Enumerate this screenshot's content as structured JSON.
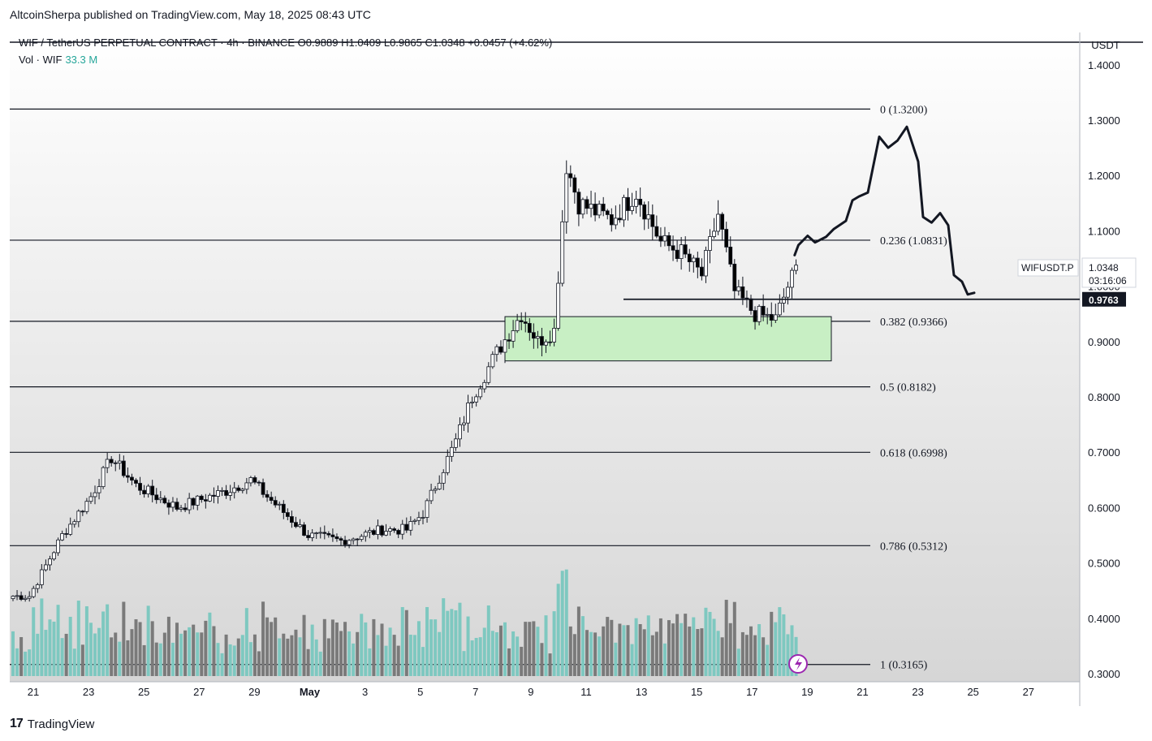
{
  "publisher_line": "AltcoinSherpa published on TradingView.com, May 18, 2025 08:43 UTC",
  "legend": {
    "symbol_line": "WIF / TetherUS PERPETUAL CONTRACT · 4h · BINANCE  O0.9889  H1.0409  L0.9865  C1.0348  +0.0457 (+4.62%)",
    "vol_label": "Vol · WIF",
    "vol_value": "33.3 M"
  },
  "price_axis": {
    "currency": "USDT",
    "ticks": [
      "1.4000",
      "1.3000",
      "1.2000",
      "1.1000",
      "1.0000",
      "0.9000",
      "0.8000",
      "0.7000",
      "0.6000",
      "0.5000",
      "0.4000",
      "0.3000"
    ]
  },
  "price_badge": {
    "symbol": "WIFUSDT.P",
    "price": "1.0348",
    "countdown": "03:16:06",
    "level": "0.9763"
  },
  "time_axis": {
    "labels": [
      "21",
      "23",
      "25",
      "27",
      "29",
      "May",
      "3",
      "5",
      "7",
      "9",
      "11",
      "13",
      "15",
      "17",
      "19",
      "21",
      "23",
      "25",
      "27"
    ]
  },
  "branding": {
    "logo_text": "TradingView",
    "logo_mark": "17"
  },
  "colors": {
    "up_candle": "#ffffff",
    "down_candle": "#000000",
    "zone": "#c8efc4",
    "vol_up": "#7ec8c0",
    "vol_down": "#7a7a7a",
    "badge_bg": "#131722"
  },
  "chart_data": {
    "type": "candlestick",
    "interval": "4h",
    "ylim": [
      0.3,
      1.4
    ],
    "fib_levels": [
      {
        "label": "0 (1.3200)",
        "value": 1.32
      },
      {
        "label": "0.236 (1.0831)",
        "value": 1.0831
      },
      {
        "label": "0.382 (0.9366)",
        "value": 0.9366
      },
      {
        "label": "0.5 (0.8182)",
        "value": 0.8182
      },
      {
        "label": "0.618 (0.6998)",
        "value": 0.6998
      },
      {
        "label": "0.786 (0.5312)",
        "value": 0.5312
      },
      {
        "label": "1 (0.3165)",
        "value": 0.3165
      }
    ],
    "horizontal_level": 0.9763,
    "support_zone": {
      "low": 0.865,
      "high": 0.945
    },
    "price_path_anchors": [
      [
        0,
        0.44
      ],
      [
        4,
        0.44
      ],
      [
        12,
        0.55
      ],
      [
        19,
        0.62
      ],
      [
        24,
        0.69
      ],
      [
        30,
        0.64
      ],
      [
        40,
        0.6
      ],
      [
        52,
        0.63
      ],
      [
        58,
        0.65
      ],
      [
        62,
        0.62
      ],
      [
        72,
        0.55
      ],
      [
        80,
        0.54
      ],
      [
        90,
        0.56
      ],
      [
        96,
        0.56
      ],
      [
        100,
        0.59
      ],
      [
        108,
        0.72
      ],
      [
        112,
        0.8
      ],
      [
        118,
        0.88
      ],
      [
        124,
        0.95
      ],
      [
        128,
        0.9
      ],
      [
        132,
        0.92
      ],
      [
        135,
        1.22
      ],
      [
        138,
        1.15
      ],
      [
        146,
        1.12
      ],
      [
        152,
        1.17
      ],
      [
        158,
        1.08
      ],
      [
        163,
        1.06
      ],
      [
        168,
        1.02
      ],
      [
        172,
        1.13
      ],
      [
        176,
        0.99
      ],
      [
        181,
        0.95
      ],
      [
        186,
        0.94
      ],
      [
        189,
        1.0
      ],
      [
        191,
        1.03
      ]
    ],
    "projection_path": [
      [
        0.9788,
        1.056
      ],
      [
        0.9834,
        1.074
      ],
      [
        0.9948,
        1.091
      ],
      [
        1.004,
        1.079
      ],
      [
        1.0174,
        1.089
      ],
      [
        1.0268,
        1.103
      ],
      [
        1.042,
        1.118
      ],
      [
        1.05,
        1.155
      ],
      [
        1.058,
        1.162
      ],
      [
        1.069,
        1.169
      ],
      [
        1.083,
        1.27
      ],
      [
        1.094,
        1.25
      ],
      [
        1.1055,
        1.263
      ],
      [
        1.117,
        1.288
      ],
      [
        1.131,
        1.225
      ],
      [
        1.137,
        1.125
      ],
      [
        1.1475,
        1.115
      ],
      [
        1.158,
        1.132
      ],
      [
        1.168,
        1.11
      ],
      [
        1.175,
        1.02
      ],
      [
        1.185,
        1.008
      ],
      [
        1.192,
        0.985
      ],
      [
        1.2,
        0.988
      ]
    ]
  }
}
